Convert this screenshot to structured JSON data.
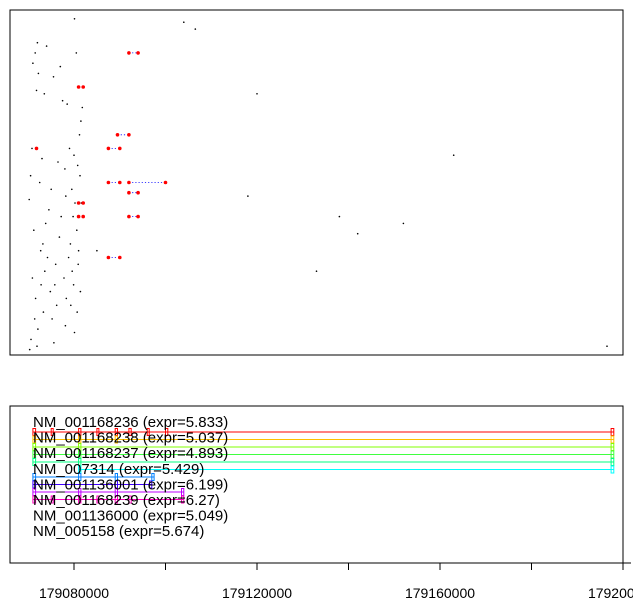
{
  "chart_data": [
    {
      "type": "scatter",
      "description": "Read-pair / junction plot: black dots = reads, red dots joined by dotted blue lines = spliced read pairs",
      "xlim": [
        179066000,
        179200000
      ],
      "ylim": [
        0,
        100
      ],
      "axes_shown": false,
      "reads": [
        [
          179080100,
          98
        ],
        [
          179104000,
          97
        ],
        [
          179106500,
          95
        ],
        [
          179072000,
          91
        ],
        [
          179074000,
          90
        ],
        [
          179071500,
          88
        ],
        [
          179080500,
          88
        ],
        [
          179071000,
          85
        ],
        [
          179077000,
          84
        ],
        [
          179072200,
          82
        ],
        [
          179075500,
          81
        ],
        [
          179081000,
          78
        ],
        [
          179071800,
          77
        ],
        [
          179073500,
          76
        ],
        [
          179077500,
          74
        ],
        [
          179078500,
          73
        ],
        [
          179081800,
          72
        ],
        [
          179081500,
          68
        ],
        [
          179081200,
          64
        ],
        [
          179070800,
          60
        ],
        [
          179079000,
          60
        ],
        [
          179120000,
          76
        ],
        [
          179080000,
          58
        ],
        [
          179073000,
          57
        ],
        [
          179076500,
          56
        ],
        [
          179080800,
          55
        ],
        [
          179078000,
          54
        ],
        [
          179070500,
          52
        ],
        [
          179081300,
          52
        ],
        [
          179072500,
          50
        ],
        [
          179075000,
          48
        ],
        [
          179079500,
          48
        ],
        [
          179078200,
          46
        ],
        [
          179070200,
          45
        ],
        [
          179080200,
          44
        ],
        [
          179081600,
          44
        ],
        [
          179074500,
          42
        ],
        [
          179077200,
          40
        ],
        [
          179079800,
          40
        ],
        [
          179073800,
          38
        ],
        [
          179071200,
          36
        ],
        [
          179080600,
          36
        ],
        [
          179076800,
          34
        ],
        [
          179073200,
          32
        ],
        [
          179079200,
          32
        ],
        [
          179072700,
          30
        ],
        [
          179081000,
          30
        ],
        [
          179085000,
          30
        ],
        [
          179074200,
          28
        ],
        [
          179078800,
          28
        ],
        [
          179076000,
          26
        ],
        [
          179080900,
          26
        ],
        [
          179073600,
          24
        ],
        [
          179079600,
          24
        ],
        [
          179070900,
          22
        ],
        [
          179077800,
          22
        ],
        [
          179072800,
          20
        ],
        [
          179075800,
          20
        ],
        [
          179079900,
          20
        ],
        [
          179074800,
          18
        ],
        [
          179081400,
          18
        ],
        [
          179071600,
          16
        ],
        [
          179078300,
          16
        ],
        [
          179076200,
          14
        ],
        [
          179079300,
          14
        ],
        [
          179073300,
          12
        ],
        [
          179080700,
          12
        ],
        [
          179071400,
          10
        ],
        [
          179075200,
          10
        ],
        [
          179078100,
          8
        ],
        [
          179072100,
          7
        ],
        [
          179080100,
          6
        ],
        [
          179070600,
          4
        ],
        [
          179075600,
          3
        ],
        [
          179071900,
          2
        ],
        [
          179070300,
          1
        ],
        [
          179163000,
          58
        ],
        [
          179118000,
          46
        ],
        [
          179138000,
          40
        ],
        [
          179152000,
          38
        ],
        [
          179142000,
          35
        ],
        [
          179133000,
          24
        ],
        [
          179196500,
          2
        ]
      ],
      "pairs": [
        [
          179092000,
          179094000,
          88
        ],
        [
          179081000,
          179082000,
          78
        ],
        [
          179089500,
          179092000,
          64
        ],
        [
          179087500,
          179090000,
          60
        ],
        [
          179071800,
          179071800,
          60
        ],
        [
          179087500,
          179090000,
          50
        ],
        [
          179092000,
          179100000,
          50
        ],
        [
          179081000,
          179082000,
          44
        ],
        [
          179092000,
          179094000,
          47
        ],
        [
          179081000,
          179082000,
          40
        ],
        [
          179092000,
          179094000,
          40
        ],
        [
          179087500,
          179090000,
          28
        ]
      ],
      "colors": {
        "read": "#000000",
        "pair_point": "#ff0000",
        "pair_link": "#0000ff"
      }
    },
    {
      "type": "gene-model",
      "xlim": [
        179066000,
        179200000
      ],
      "x_ticks": [
        179080000,
        179120000,
        179160000,
        179200000
      ],
      "x_tick_labels": [
        "179080000",
        "179120000",
        "179160000",
        "179200000"
      ],
      "x_minor_ticks": [
        179100000,
        179140000,
        179180000
      ],
      "transcripts": [
        {
          "label": "NM_001168236 (expr=5.833)",
          "start": 179071000,
          "end": 179198000,
          "color": "#ff0000",
          "exons": [
            [
              179071000,
              179071600
            ],
            [
              179075000,
              179075400
            ],
            [
              179081000,
              179081500
            ],
            [
              179085000,
              179085400
            ],
            [
              179089000,
              179089500
            ],
            [
              179092000,
              179092500
            ],
            [
              179096000,
              179096400
            ],
            [
              179100000,
              179100500
            ],
            [
              179197400,
              179198000
            ]
          ]
        },
        {
          "label": "NM_001168238 (expr=5.037)",
          "start": 179071000,
          "end": 179198000,
          "color": "#ffbf00",
          "exons": [
            [
              179071000,
              179071600
            ],
            [
              179081000,
              179081500
            ],
            [
              179089000,
              179089500
            ],
            [
              179197400,
              179198000
            ]
          ]
        },
        {
          "label": "NM_001168237 (expr=4.893)",
          "start": 179071000,
          "end": 179198000,
          "color": "#80ff00",
          "exons": [
            [
              179071000,
              179071600
            ],
            [
              179081000,
              179081500
            ],
            [
              179197400,
              179198000
            ]
          ]
        },
        {
          "label": "NM_007314 (expr=5.429)",
          "start": 179071000,
          "end": 179198000,
          "color": "#40ff40",
          "exons": [
            [
              179071000,
              179071600
            ],
            [
              179081000,
              179081500
            ],
            [
              179197400,
              179198000
            ]
          ]
        },
        {
          "label": "NM_001136001 (expr=6.199)",
          "start": 179071000,
          "end": 179198000,
          "color": "#00ff80",
          "exons": [
            [
              179071000,
              179071600
            ],
            [
              179081000,
              179081500
            ],
            [
              179197400,
              179198000
            ]
          ]
        },
        {
          "label": "NM_001168239 (expr=6.27)",
          "start": 179081000,
          "end": 179198000,
          "color": "#00ffff",
          "exons": [
            [
              179081000,
              179081500
            ],
            [
              179197400,
              179198000
            ]
          ]
        },
        {
          "label": "NM_001136000 (expr=5.049)",
          "start": 179071000,
          "end": 179097500,
          "color": "#0080ff",
          "exons": [
            [
              179071000,
              179071600
            ],
            [
              179081000,
              179081500
            ],
            [
              179089000,
              179089500
            ],
            [
              179097000,
              179097500
            ]
          ]
        },
        {
          "label": "NM_005158 (expr=5.674)",
          "start": 179071000,
          "end": 179097000,
          "color": "#4000ff",
          "exons": [
            [
              179071000,
              179071600
            ],
            [
              179089000,
              179089500
            ],
            [
              179096500,
              179097000
            ]
          ]
        },
        {
          "label": "",
          "start": 179071000,
          "end": 179104000,
          "color": "#bf00ff",
          "exons": [
            [
              179071000,
              179071600
            ],
            [
              179081000,
              179081500
            ],
            [
              179089000,
              179089500
            ],
            [
              179103500,
              179104000
            ]
          ]
        },
        {
          "label": "",
          "start": 179071000,
          "end": 179104000,
          "color": "#ff00bf",
          "exons": [
            [
              179071000,
              179071600
            ],
            [
              179075000,
              179075400
            ],
            [
              179081000,
              179081500
            ],
            [
              179085000,
              179085400
            ],
            [
              179089000,
              179089500
            ],
            [
              179092000,
              179092500
            ],
            [
              179103500,
              179104000
            ]
          ]
        }
      ]
    }
  ]
}
